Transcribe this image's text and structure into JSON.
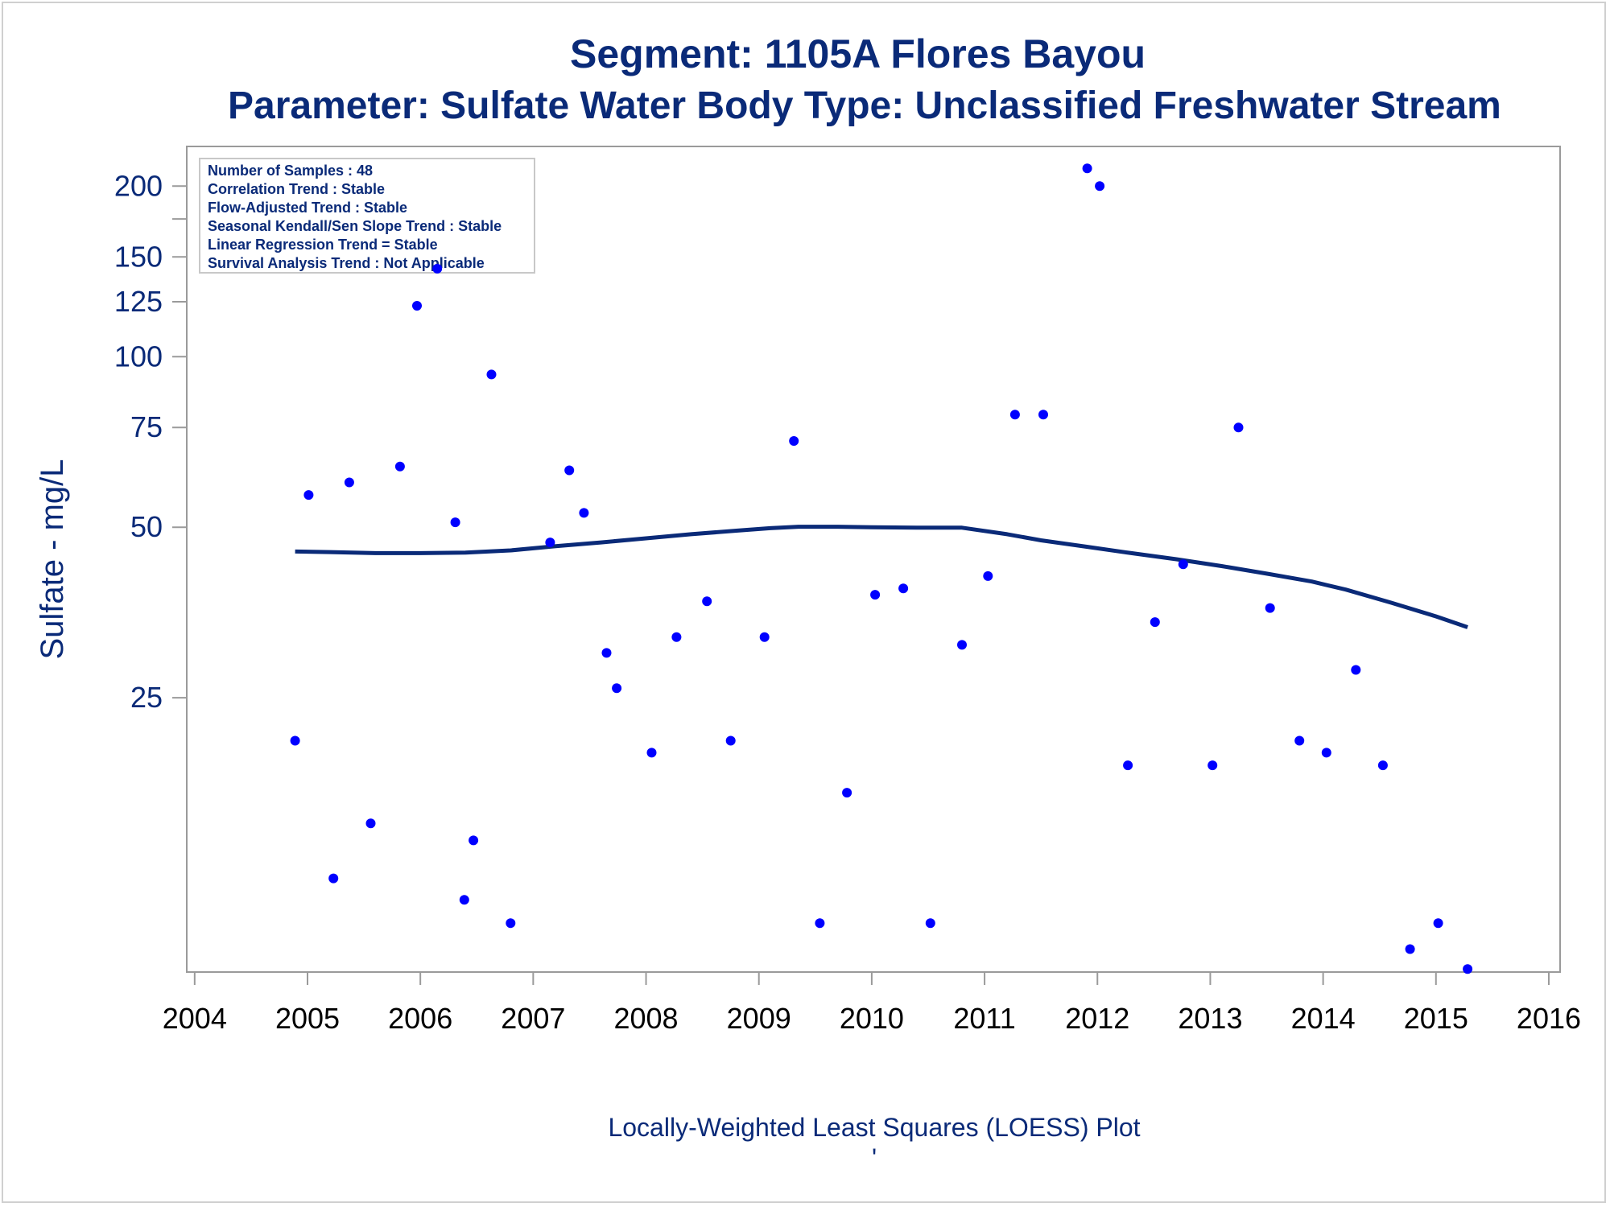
{
  "chart_data": {
    "type": "scatter",
    "title": "Segment: 1105A  Flores Bayou",
    "subtitle": "Parameter: Sulfate   Water Body Type: Unclassified Freshwater Stream",
    "ylabel": "Sulfate - mg/L",
    "xlabel": "",
    "footnote": "Locally-Weighted Least Squares (LOESS) Plot",
    "footnote_mark": "'",
    "y_scale": "log",
    "ylim": [
      8.2,
      235
    ],
    "xlim": [
      2003.93,
      2016.1
    ],
    "y_ticks": [
      25,
      50,
      75,
      100,
      125,
      150,
      200
    ],
    "y_minor_ticks": [
      175
    ],
    "x_ticks": [
      2004,
      2005,
      2006,
      2007,
      2008,
      2009,
      2010,
      2011,
      2012,
      2013,
      2014,
      2015,
      2016
    ],
    "point_color": "#0000ff",
    "line_color": "#0a2a78",
    "stats_box": {
      "position": "top-left",
      "lines": [
        "Number of Samples : 48",
        "Correlation Trend : Stable",
        "Flow-Adjusted Trend : Stable",
        "Seasonal Kendall/Sen Slope Trend : Stable",
        "Linear Regression Trend = Stable",
        "Survival Analysis Trend : Not Applicable"
      ]
    },
    "series": [
      {
        "type": "scatter",
        "points": [
          [
            2004.89,
            21
          ],
          [
            2005.01,
            57
          ],
          [
            2005.23,
            12
          ],
          [
            2005.37,
            60
          ],
          [
            2005.56,
            15
          ],
          [
            2005.82,
            64
          ],
          [
            2005.97,
            123
          ],
          [
            2006.15,
            143
          ],
          [
            2006.31,
            51
          ],
          [
            2006.39,
            11
          ],
          [
            2006.47,
            14
          ],
          [
            2006.63,
            93
          ],
          [
            2006.8,
            10
          ],
          [
            2007.15,
            47
          ],
          [
            2007.32,
            63
          ],
          [
            2007.45,
            53
          ],
          [
            2007.65,
            30
          ],
          [
            2007.74,
            26
          ],
          [
            2008.05,
            20
          ],
          [
            2008.27,
            32
          ],
          [
            2008.54,
            37
          ],
          [
            2008.75,
            21
          ],
          [
            2009.05,
            32
          ],
          [
            2009.31,
            71
          ],
          [
            2009.54,
            10
          ],
          [
            2009.78,
            17
          ],
          [
            2010.03,
            38
          ],
          [
            2010.28,
            39
          ],
          [
            2010.52,
            10
          ],
          [
            2010.8,
            31
          ],
          [
            2011.03,
            41
          ],
          [
            2011.27,
            79
          ],
          [
            2011.52,
            79
          ],
          [
            2011.91,
            215
          ],
          [
            2012.02,
            200
          ],
          [
            2012.27,
            19
          ],
          [
            2012.51,
            34
          ],
          [
            2012.76,
            43
          ],
          [
            2013.02,
            19
          ],
          [
            2013.25,
            75
          ],
          [
            2013.53,
            36
          ],
          [
            2013.79,
            21
          ],
          [
            2014.03,
            20
          ],
          [
            2014.29,
            28
          ],
          [
            2014.53,
            19
          ],
          [
            2014.77,
            9
          ],
          [
            2015.02,
            10
          ],
          [
            2015.28,
            8.3
          ]
        ]
      },
      {
        "type": "line",
        "points": [
          [
            2004.89,
            45.3
          ],
          [
            2005.2,
            45.2
          ],
          [
            2005.6,
            45.0
          ],
          [
            2006.0,
            45.0
          ],
          [
            2006.4,
            45.1
          ],
          [
            2006.8,
            45.5
          ],
          [
            2007.2,
            46.3
          ],
          [
            2007.6,
            47.0
          ],
          [
            2008.0,
            47.8
          ],
          [
            2008.4,
            48.6
          ],
          [
            2008.8,
            49.3
          ],
          [
            2009.1,
            49.8
          ],
          [
            2009.35,
            50.1
          ],
          [
            2009.7,
            50.1
          ],
          [
            2010.0,
            50.0
          ],
          [
            2010.4,
            49.9
          ],
          [
            2010.8,
            49.9
          ],
          [
            2011.2,
            48.6
          ],
          [
            2011.5,
            47.4
          ],
          [
            2011.9,
            46.2
          ],
          [
            2012.3,
            45.0
          ],
          [
            2012.7,
            43.9
          ],
          [
            2013.1,
            42.7
          ],
          [
            2013.5,
            41.4
          ],
          [
            2013.9,
            40.1
          ],
          [
            2014.2,
            38.8
          ],
          [
            2014.6,
            36.8
          ],
          [
            2015.0,
            34.8
          ],
          [
            2015.28,
            33.3
          ]
        ]
      }
    ]
  }
}
